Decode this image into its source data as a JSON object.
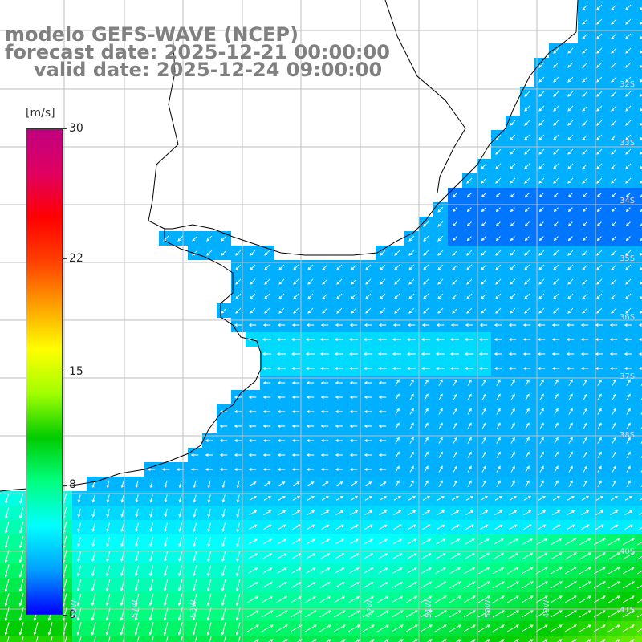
{
  "title": {
    "line1": "modelo GEFS-WAVE (NCEP)",
    "line2": "forecast date: 2025-12-21 00:00:00",
    "line3": "valid date: 2025-12-24 09:00:00"
  },
  "colorbar": {
    "unit": "[m/s]",
    "ticks": [
      "30",
      "22",
      "15",
      "8",
      "0"
    ],
    "tick_values": [
      30,
      22,
      15,
      8,
      0
    ],
    "range": [
      0,
      30
    ],
    "colors": [
      "#0000ff",
      "#00a0ff",
      "#00ffff",
      "#00ff80",
      "#00cc00",
      "#a0ff00",
      "#ffff00",
      "#ffa000",
      "#ff4000",
      "#ff0000",
      "#e00060",
      "#c00080"
    ]
  },
  "map": {
    "latitude_labels": [
      "32S",
      "33S",
      "34S",
      "35S",
      "36S",
      "37S",
      "38S",
      "40S",
      "41S"
    ],
    "longitude_labels": [
      "59W",
      "57W",
      "53W",
      "52W",
      "51W",
      "50W",
      "49W"
    ],
    "colors": {
      "land": "#ffffff",
      "coast": "#000000",
      "grid": "#bfbfbf",
      "vector": "#ffffff"
    }
  }
}
